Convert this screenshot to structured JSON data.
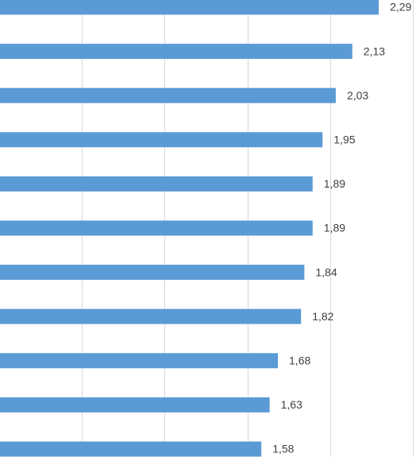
{
  "chart_data": {
    "type": "hbar",
    "categories": [
      null,
      null,
      null,
      null,
      null,
      null,
      null,
      null,
      null,
      null,
      null
    ],
    "values": [
      2.29,
      2.13,
      2.03,
      1.95,
      1.89,
      1.89,
      1.84,
      1.82,
      1.68,
      1.63,
      1.58
    ],
    "value_labels": [
      "2,29",
      "2,13",
      "2,03",
      "1,95",
      "1,89",
      "1,89",
      "1,84",
      "1,82",
      "1,68",
      "1,63",
      "1,58"
    ],
    "color": "#5b9bd5",
    "xlim": [
      0,
      2.515
    ],
    "xticks": [
      0.5,
      1,
      1.5,
      2,
      2.5
    ],
    "grid": true
  }
}
